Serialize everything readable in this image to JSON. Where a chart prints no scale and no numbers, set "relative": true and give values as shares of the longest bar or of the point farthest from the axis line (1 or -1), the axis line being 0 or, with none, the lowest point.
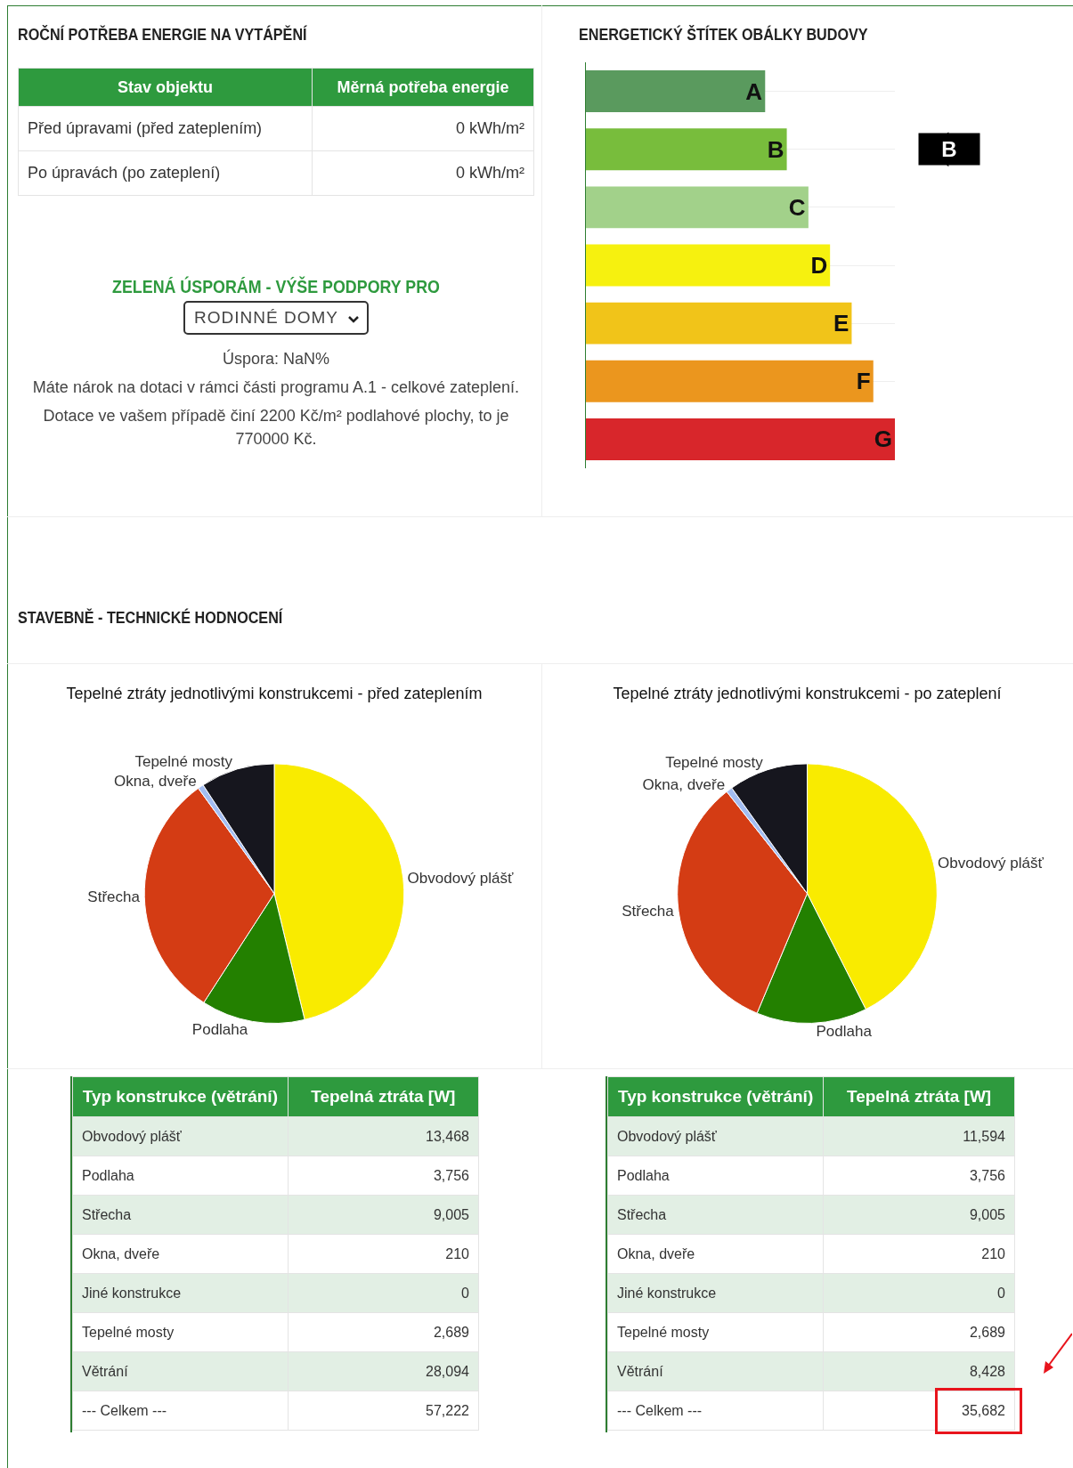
{
  "chart_data": [
    {
      "type": "other",
      "title": "ROČNÍ POTŘEBA ENERGIE NA VYTÁPĚNÍ",
      "xlabel": "Stav objektu",
      "ylabel": "Měrná potřeba energie",
      "categories": [
        "Před úpravami (před zateplením)",
        "Po úpravách (po zateplení)"
      ],
      "value_labels": [
        "0 kWh/m²",
        "0 kWh/m²"
      ],
      "annotations": [
        "ZELENÁ ÚSPORÁM - VÝŠE PODPORY PRO",
        "RODINNÉ DOMY",
        "Úspora: NaN%",
        "Máte nárok na dotaci v rámci části programu A.1 - celkové zateplení.",
        "Dotace ve vašem případě činí 2200 Kč/m² podlahové plochy, to je 770000 Kč."
      ]
    },
    {
      "type": "bar",
      "orientation": "horizontal",
      "relative": true,
      "title": "ENERGETICKÝ ŠTÍTEK OBÁLKY BUDOVY",
      "categories": [
        "A",
        "B",
        "C",
        "D",
        "E",
        "F",
        "G"
      ],
      "values": [
        0.58,
        0.65,
        0.72,
        0.79,
        0.86,
        0.93,
        1
      ],
      "colors": [
        "#5a9a5e",
        "#78bd3c",
        "#a2d18a",
        "#f6f10f",
        "#f1c419",
        "#eb961e",
        "#d8262b"
      ],
      "tick_labels": false,
      "grid": "y",
      "annotations": [
        "B"
      ]
    },
    {
      "type": "other",
      "title": "STAVEBNĚ - TECHNICKÉ HODNOCENÍ"
    },
    {
      "type": "pie",
      "title": "Tepelné ztráty jednotlivými konstrukcemi - před zateplením",
      "categories": [
        "Obvodový plášť",
        "Podlaha",
        "Střecha",
        "Okna, dveře",
        "Tepelné mosty"
      ],
      "values": [
        46.24,
        12.89,
        30.92,
        0.72,
        9.23
      ],
      "colors": [
        "#f9eb00",
        "#238000",
        "#d43c14",
        "#a3bdf2",
        "#16161e"
      ]
    },
    {
      "type": "pie",
      "title": "Tepelné ztráty jednotlivými konstrukcemi - po zateplení",
      "categories": [
        "Obvodový plášť",
        "Podlaha",
        "Střecha",
        "Okna, dveře",
        "Tepelné mosty"
      ],
      "values": [
        42.54,
        13.78,
        33.04,
        0.77,
        9.87
      ],
      "colors": [
        "#f9eb00",
        "#238000",
        "#d43c14",
        "#a3bdf2",
        "#16161e"
      ]
    },
    {
      "type": "other",
      "xlabel": "Typ konstrukce (větrání)",
      "ylabel": "Tepelná ztráta [W]",
      "categories": [
        "Obvodový plášť",
        "Podlaha",
        "Střecha",
        "Okna, dveře",
        "Jiné konstrukce",
        "Tepelné mosty",
        "Větrání",
        "--- Celkem ---"
      ],
      "value_labels": [
        "13,468",
        "3,756",
        "9,005",
        "210",
        "0",
        "2,689",
        "28,094",
        "57,222"
      ]
    },
    {
      "type": "other",
      "xlabel": "Typ konstrukce (větrání)",
      "ylabel": "Tepelná ztráta [W]",
      "categories": [
        "Obvodový plášť",
        "Podlaha",
        "Střecha",
        "Okna, dveře",
        "Jiné konstrukce",
        "Tepelné mosty",
        "Větrání",
        "--- Celkem ---"
      ],
      "value_labels": [
        "11,594",
        "3,756",
        "9,005",
        "210",
        "0",
        "2,689",
        "8,428",
        "35,682"
      ]
    }
  ]
}
